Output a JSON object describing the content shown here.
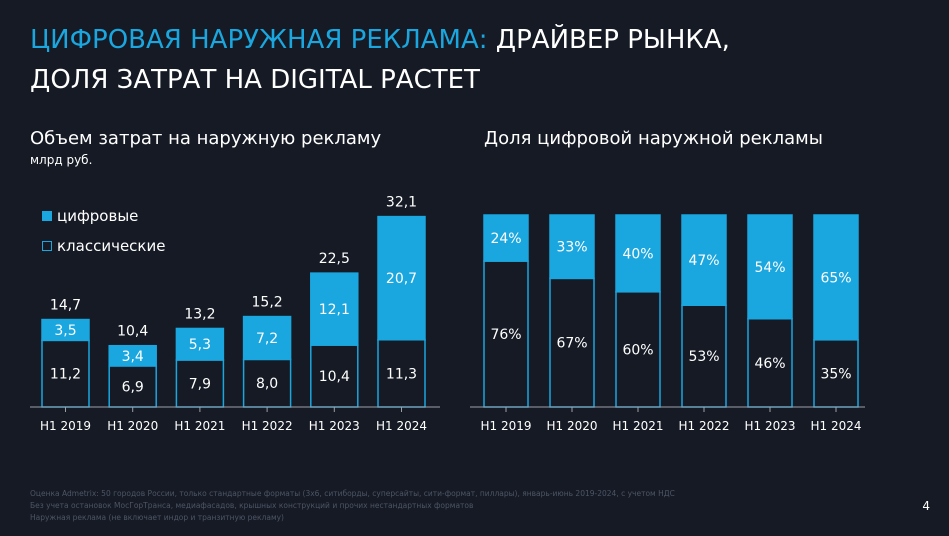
{
  "title": {
    "accent": "ЦИФРОВАЯ НАРУЖНАЯ РЕКЛАМА:",
    "rest": "ДРАЙВЕР РЫНКА,",
    "line2": "ДОЛЯ ЗАТРАТ НА DIGITAL РАСТЕТ"
  },
  "colors": {
    "accent": "#1aa6df",
    "background": "#151a24",
    "bar_outline": "#1aa6df",
    "classic_fill": "#151a24"
  },
  "legend": {
    "digital": "цифровые",
    "classic": "классические"
  },
  "chart_data": [
    {
      "type": "bar",
      "stacked": true,
      "title": "Объем затрат на наружную рекламу",
      "subtitle": "млрд руб.",
      "categories": [
        "H1 2019",
        "H1 2020",
        "H1 2021",
        "H1 2022",
        "H1 2023",
        "H1 2024"
      ],
      "series": [
        {
          "name": "классические",
          "values": [
            11.2,
            6.9,
            7.9,
            8.0,
            10.4,
            11.3
          ],
          "labels": [
            "11,2",
            "6,9",
            "7,9",
            "8,0",
            "10,4",
            "11,3"
          ]
        },
        {
          "name": "цифровые",
          "values": [
            3.5,
            3.4,
            5.3,
            7.2,
            12.1,
            20.7
          ],
          "labels": [
            "3,5",
            "3,4",
            "5,3",
            "7,2",
            "12,1",
            "20,7"
          ]
        }
      ],
      "totals": [
        14.7,
        10.4,
        13.2,
        15.2,
        22.5,
        32.1
      ],
      "total_labels": [
        "14,7",
        "10,4",
        "13,2",
        "15,2",
        "22,5",
        "32,1"
      ],
      "ylim": [
        0,
        32.1
      ],
      "legend_position": "top-left"
    },
    {
      "type": "bar",
      "stacked": true,
      "percent": true,
      "title": "Доля цифровой наружной рекламы",
      "categories": [
        "H1 2019",
        "H1 2020",
        "H1 2021",
        "H1 2022",
        "H1 2023",
        "H1 2024"
      ],
      "series": [
        {
          "name": "классические",
          "values": [
            76,
            67,
            60,
            53,
            46,
            35
          ],
          "labels": [
            "76%",
            "67%",
            "60%",
            "53%",
            "46%",
            "35%"
          ]
        },
        {
          "name": "цифровые",
          "values": [
            24,
            33,
            40,
            47,
            54,
            65
          ],
          "labels": [
            "24%",
            "33%",
            "40%",
            "47%",
            "54%",
            "65%"
          ]
        }
      ],
      "ylim": [
        0,
        100
      ]
    }
  ],
  "footnote": [
    "Оценка Admetrix: 50 городов России, только стандартные форматы (3х6, ситиборды, суперсайты, сити-формат, пиллары), январь-июнь 2019-2024, с учетом НДС",
    "Без учета остановок МосГорТранса, медиафасадов, крышных конструкций и прочих нестандартных форматов",
    "Наружная реклама (не включает индор и транзитную рекламу)"
  ],
  "page_number": "4"
}
